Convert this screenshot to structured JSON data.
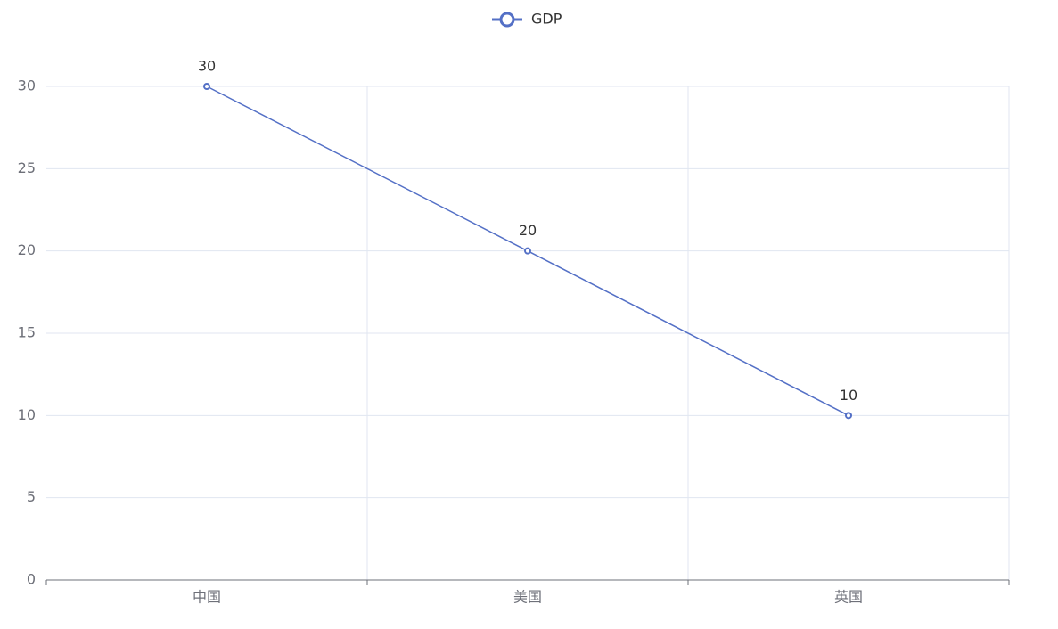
{
  "chart_data": {
    "type": "line",
    "categories": [
      "中国",
      "美国",
      "英国"
    ],
    "series": [
      {
        "name": "GDP",
        "color": "#5470c6",
        "values": [
          30,
          20,
          10
        ]
      }
    ],
    "ylim": [
      0,
      30
    ],
    "yticks": [
      0,
      5,
      10,
      15,
      20,
      25,
      30
    ],
    "grid": true,
    "legend": "top"
  }
}
